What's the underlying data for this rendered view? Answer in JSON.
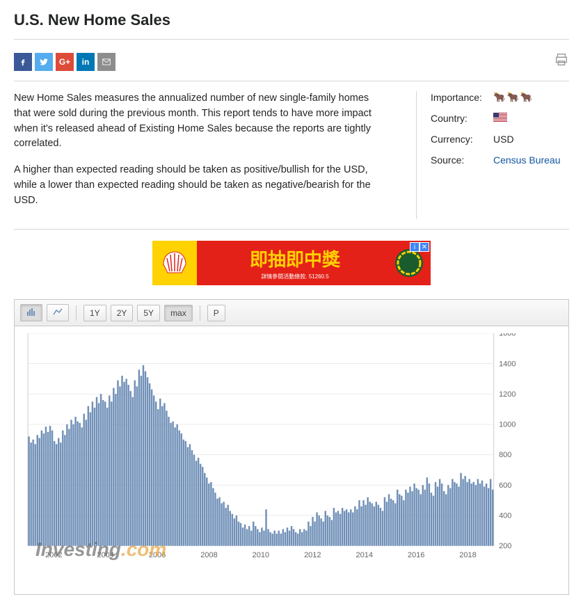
{
  "title": "U.S. New Home Sales",
  "share_icons": [
    "facebook",
    "twitter",
    "googleplus",
    "linkedin",
    "email"
  ],
  "desc_p1": "New Home Sales measures the annualized number of new single-family homes that were sold during the previous month. This report tends to have more impact when it's released ahead of Existing Home Sales because the reports are tightly correlated.",
  "desc_p2": "A higher than expected reading should be taken as positive/bullish for the USD, while a lower than expected reading should be taken as negative/bearish for the USD.",
  "meta": {
    "importance_label": "Importance:",
    "importance_level": 3,
    "country_label": "Country:",
    "country": "US",
    "currency_label": "Currency:",
    "currency": "USD",
    "source_label": "Source:",
    "source": "Census Bureau",
    "source_url": "#"
  },
  "ad": {
    "text": "即抽即中獎",
    "sub": "詳情參閱活動條款. 51260.5"
  },
  "toolbar": {
    "ranges": [
      "1Y",
      "2Y",
      "5Y",
      "max"
    ],
    "active_range": "max",
    "p_label": "P"
  },
  "chart": {
    "type": "bar",
    "bar_color": "#6f8fb7",
    "grid_color": "#e8e8e8",
    "border_color": "#c8c8c8",
    "axis_text_color": "#666666",
    "axis_fontsize": 12,
    "background": "#ffffff",
    "ylim": [
      200,
      1600
    ],
    "ytick_step": 200,
    "x_labels": [
      "2002",
      "2004",
      "2006",
      "2008",
      "2010",
      "2012",
      "2014",
      "2016",
      "2018"
    ],
    "x_start_year": 2001,
    "x_end_year": 2019,
    "values": [
      920,
      880,
      900,
      870,
      930,
      910,
      960,
      940,
      985,
      950,
      990,
      960,
      890,
      870,
      910,
      880,
      960,
      930,
      1000,
      970,
      1030,
      1000,
      1050,
      1020,
      1010,
      980,
      1070,
      1030,
      1120,
      1080,
      1150,
      1110,
      1180,
      1140,
      1200,
      1160,
      1150,
      1110,
      1190,
      1150,
      1240,
      1200,
      1290,
      1250,
      1320,
      1280,
      1300,
      1260,
      1220,
      1180,
      1290,
      1250,
      1360,
      1320,
      1390,
      1350,
      1310,
      1270,
      1230,
      1190,
      1150,
      1100,
      1170,
      1120,
      1140,
      1090,
      1050,
      1010,
      1020,
      980,
      1000,
      960,
      940,
      900,
      890,
      850,
      870,
      830,
      800,
      760,
      780,
      740,
      720,
      680,
      650,
      610,
      620,
      580,
      550,
      510,
      520,
      480,
      490,
      450,
      470,
      430,
      410,
      380,
      400,
      360,
      350,
      320,
      340,
      310,
      330,
      300,
      360,
      330,
      310,
      290,
      320,
      300,
      440,
      310,
      290,
      280,
      300,
      280,
      300,
      280,
      310,
      290,
      320,
      300,
      330,
      310,
      290,
      280,
      310,
      290,
      310,
      300,
      360,
      330,
      390,
      360,
      420,
      400,
      380,
      360,
      430,
      400,
      390,
      370,
      450,
      420,
      430,
      410,
      450,
      430,
      440,
      420,
      440,
      420,
      460,
      440,
      500,
      460,
      500,
      470,
      520,
      490,
      480,
      460,
      490,
      470,
      450,
      430,
      520,
      490,
      540,
      510,
      500,
      480,
      570,
      540,
      530,
      500,
      570,
      550,
      590,
      560,
      610,
      580,
      570,
      540,
      600,
      570,
      650,
      610,
      550,
      530,
      620,
      590,
      640,
      610,
      560,
      540,
      600,
      580,
      640,
      620,
      610,
      590,
      680,
      640,
      660,
      620,
      640,
      610,
      620,
      600,
      640,
      610,
      630,
      590,
      610,
      580,
      640,
      570
    ]
  },
  "watermark": "Investing",
  "watermark_suffix": ".com"
}
